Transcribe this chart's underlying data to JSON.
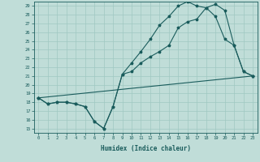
{
  "xlabel": "Humidex (Indice chaleur)",
  "xlim": [
    -0.5,
    23.5
  ],
  "ylim": [
    14.5,
    29.5
  ],
  "yticks": [
    15,
    16,
    17,
    18,
    19,
    20,
    21,
    22,
    23,
    24,
    25,
    26,
    27,
    28,
    29
  ],
  "xticks": [
    0,
    1,
    2,
    3,
    4,
    5,
    6,
    7,
    8,
    9,
    10,
    11,
    12,
    13,
    14,
    15,
    16,
    17,
    18,
    19,
    20,
    21,
    22,
    23
  ],
  "bg_color": "#c0ddd8",
  "grid_color": "#9fc8c2",
  "line_color": "#1a5c5c",
  "line1_x": [
    0,
    1,
    2,
    3,
    4,
    5,
    6,
    7,
    8,
    9,
    10,
    11,
    12,
    13,
    14,
    15,
    16,
    17,
    18,
    19,
    20,
    21,
    22,
    23
  ],
  "line1_y": [
    18.5,
    17.8,
    18.0,
    18.0,
    17.8,
    17.5,
    15.8,
    15.0,
    17.5,
    21.2,
    21.5,
    22.5,
    23.2,
    23.8,
    24.5,
    26.5,
    27.2,
    27.5,
    28.8,
    29.2,
    28.5,
    24.5,
    21.5,
    21.0
  ],
  "line2_x": [
    0,
    1,
    2,
    3,
    4,
    5,
    6,
    7,
    8,
    9,
    10,
    11,
    12,
    13,
    14,
    15,
    16,
    17,
    18,
    19,
    20,
    21,
    22,
    23
  ],
  "line2_y": [
    18.5,
    17.8,
    18.0,
    18.0,
    17.8,
    17.5,
    15.8,
    15.0,
    17.5,
    21.2,
    22.5,
    23.8,
    25.2,
    26.8,
    27.8,
    29.0,
    29.5,
    29.0,
    28.8,
    27.8,
    25.2,
    24.5,
    21.5,
    21.0
  ],
  "line3_x": [
    0,
    23
  ],
  "line3_y": [
    18.5,
    21.0
  ]
}
